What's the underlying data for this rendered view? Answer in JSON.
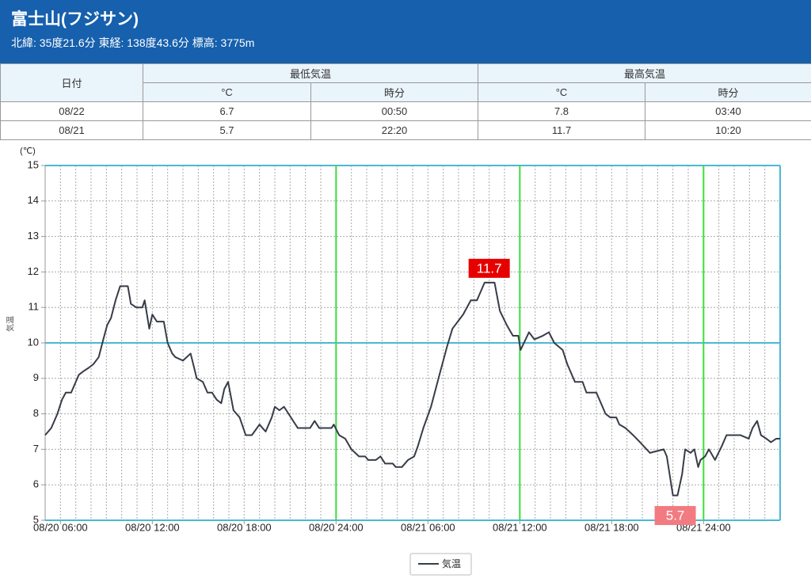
{
  "header": {
    "title": "富士山(フジサン)",
    "subtitle": "北緯: 35度21.6分 東経: 138度43.6分 標高: 3775m"
  },
  "table": {
    "head": {
      "date": "日付",
      "groups": [
        "最低気温",
        "最高気温"
      ],
      "sub": [
        "°C",
        "時分",
        "°C",
        "時分"
      ]
    },
    "rows": [
      [
        "08/22",
        "6.7",
        "00:50",
        "7.8",
        "03:40"
      ],
      [
        "08/21",
        "5.7",
        "22:20",
        "11.7",
        "10:20"
      ]
    ]
  },
  "chart_data": {
    "type": "line",
    "yunit": "(℃)",
    "ylabel": "気温",
    "x": [
      5.0,
      5.4,
      5.8,
      6.1,
      6.35,
      6.7,
      7.0,
      7.2,
      7.5,
      7.85,
      8.15,
      8.5,
      8.8,
      9.05,
      9.3,
      9.6,
      9.9,
      10.4,
      10.6,
      10.95,
      11.35,
      11.5,
      11.8,
      12.0,
      12.3,
      12.75,
      13.0,
      13.3,
      13.5,
      14.0,
      14.5,
      14.9,
      15.3,
      15.6,
      15.9,
      16.2,
      16.5,
      16.7,
      16.95,
      17.3,
      17.7,
      18.1,
      18.5,
      19.0,
      19.4,
      19.8,
      20.0,
      20.3,
      20.6,
      21.5,
      22.3,
      22.6,
      22.9,
      23.7,
      23.85,
      24.2,
      24.6,
      25.0,
      25.5,
      25.9,
      26.1,
      26.6,
      26.9,
      27.2,
      27.45,
      27.7,
      27.9,
      28.3,
      28.7,
      29.1,
      29.35,
      29.7,
      30.2,
      30.75,
      31.25,
      31.6,
      32.3,
      32.8,
      33.2,
      33.7,
      34.35,
      34.7,
      35.15,
      35.55,
      35.9,
      36.05,
      36.6,
      36.95,
      37.5,
      37.9,
      38.25,
      38.8,
      39.1,
      39.6,
      40.1,
      40.35,
      41.0,
      41.6,
      41.9,
      42.3,
      42.5,
      42.9,
      43.4,
      43.85,
      44.5,
      45.4,
      45.6,
      46.0,
      46.3,
      46.6,
      46.8,
      47.15,
      47.4,
      47.65,
      47.8,
      48.1,
      48.35,
      48.75,
      49.2,
      49.5,
      50.4,
      50.95,
      51.2,
      51.5,
      51.75,
      52.1,
      52.4,
      52.75,
      53.0
    ],
    "series": [
      {
        "name": "気温",
        "color": "#373c48",
        "values": [
          7.4,
          7.6,
          8.0,
          8.4,
          8.6,
          8.6,
          8.9,
          9.1,
          9.2,
          9.3,
          9.4,
          9.6,
          10.1,
          10.5,
          10.7,
          11.2,
          11.6,
          11.6,
          11.1,
          11.0,
          11.0,
          11.2,
          10.4,
          10.8,
          10.6,
          10.6,
          10.0,
          9.7,
          9.6,
          9.5,
          9.7,
          9.0,
          8.9,
          8.6,
          8.6,
          8.4,
          8.3,
          8.7,
          8.9,
          8.1,
          7.9,
          7.4,
          7.4,
          7.7,
          7.5,
          7.9,
          8.2,
          8.1,
          8.2,
          7.6,
          7.6,
          7.8,
          7.6,
          7.6,
          7.7,
          7.4,
          7.3,
          7.0,
          6.8,
          6.8,
          6.7,
          6.7,
          6.8,
          6.6,
          6.6,
          6.6,
          6.5,
          6.5,
          6.7,
          6.8,
          7.1,
          7.6,
          8.2,
          9.1,
          9.9,
          10.4,
          10.8,
          11.2,
          11.2,
          11.7,
          11.7,
          10.9,
          10.5,
          10.2,
          10.2,
          9.8,
          10.3,
          10.1,
          10.2,
          10.3,
          10.0,
          9.8,
          9.4,
          8.9,
          8.9,
          8.6,
          8.6,
          8.0,
          7.9,
          7.9,
          7.7,
          7.6,
          7.4,
          7.2,
          6.9,
          7.0,
          6.8,
          5.7,
          5.7,
          6.3,
          7.0,
          6.9,
          7.0,
          6.5,
          6.7,
          6.8,
          7.0,
          6.7,
          7.1,
          7.4,
          7.4,
          7.3,
          7.6,
          7.8,
          7.4,
          7.3,
          7.2,
          7.3,
          7.3
        ]
      }
    ],
    "xlim": [
      5,
      53
    ],
    "ylim": [
      5,
      15
    ],
    "xticks": [
      {
        "value": 6,
        "label": "08/20 06:00"
      },
      {
        "value": 12,
        "label": "08/20 12:00"
      },
      {
        "value": 18,
        "label": "08/20 18:00"
      },
      {
        "value": 24,
        "label": "08/20 24:00"
      },
      {
        "value": 30,
        "label": "08/21 06:00"
      },
      {
        "value": 36,
        "label": "08/21 12:00"
      },
      {
        "value": 42,
        "label": "08/21 18:00"
      },
      {
        "value": 48,
        "label": "08/21 24:00"
      }
    ],
    "yticks": [
      5,
      6,
      7,
      8,
      9,
      10,
      11,
      12,
      13,
      14,
      15
    ],
    "xminorticks": [
      5,
      6,
      7,
      8,
      9,
      10,
      11,
      12,
      13,
      14,
      15,
      16,
      17,
      18,
      19,
      20,
      21,
      22,
      23,
      24,
      25,
      26,
      27,
      28,
      29,
      30,
      31,
      32,
      33,
      34,
      35,
      36,
      37,
      38,
      39,
      40,
      41,
      42,
      43,
      44,
      45,
      46,
      47,
      48,
      49,
      50,
      51,
      52,
      53
    ],
    "xmajorticks": [
      24,
      36,
      48
    ],
    "ymajorticks": [
      5,
      10,
      15
    ],
    "grid": true,
    "legend": "bottom",
    "annotations": [
      {
        "x": 34.0,
        "y": 11.7,
        "label": "11.7",
        "color": "#e60000",
        "placement": "above"
      },
      {
        "x": 46.15,
        "y": 5.7,
        "label": "5.7",
        "color": "#f27b82",
        "placement": "axis"
      }
    ]
  }
}
